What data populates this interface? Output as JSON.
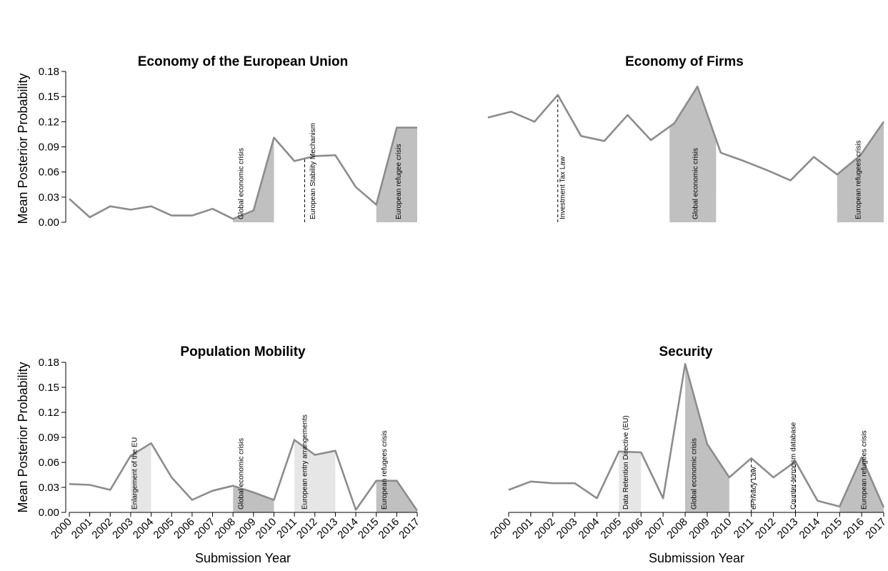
{
  "chart_data": [
    {
      "type": "line",
      "title": "Economy of the European Union",
      "ylabel": "Mean Posterior Probability",
      "xlabel": "",
      "ylim": [
        0,
        0.18
      ],
      "yticks": [
        "0.00",
        "0.03",
        "0.06",
        "0.09",
        "0.12",
        "0.15",
        "0.18"
      ],
      "x": [
        2000,
        2001,
        2002,
        2003,
        2004,
        2005,
        2006,
        2007,
        2008,
        2009,
        2010,
        2011,
        2012,
        2013,
        2014,
        2015,
        2016,
        2017
      ],
      "xticks": [],
      "values": [
        0.028,
        0.006,
        0.019,
        0.015,
        0.019,
        0.008,
        0.008,
        0.016,
        0.004,
        0.014,
        0.101,
        0.073,
        0.079,
        0.08,
        0.042,
        0.021,
        0.113,
        0.113
      ],
      "shaded": [
        {
          "from": 2008,
          "to": 2010,
          "fill": "#c0c0c0"
        },
        {
          "from": 2015,
          "to": 2017,
          "fill": "#c0c0c0"
        }
      ],
      "vlines": [
        2011.5
      ],
      "annotations": [
        {
          "text": "Global economic crisis",
          "x": 2008.5
        },
        {
          "text": "European Stability Mechanism",
          "x": 2012
        },
        {
          "text": "European refugee crisis",
          "x": 2016.2
        }
      ]
    },
    {
      "type": "line",
      "title": "Economy of Firms",
      "ylabel": "",
      "xlabel": "",
      "ylim": [
        0,
        0.18
      ],
      "yticks": [],
      "x": [
        2000,
        2001,
        2002,
        2003,
        2004,
        2005,
        2006,
        2007,
        2008,
        2009,
        2010,
        2011,
        2012,
        2013,
        2014,
        2015,
        2016,
        2017
      ],
      "xticks": [],
      "values": [
        0.125,
        0.132,
        0.12,
        0.152,
        0.103,
        0.097,
        0.128,
        0.098,
        0.118,
        0.162,
        0.083,
        0.073,
        0.062,
        0.05,
        0.078,
        0.057,
        0.08,
        0.12
      ],
      "shaded": [
        {
          "from": 2007.8,
          "to": 2009.8,
          "fill": "#c0c0c0"
        },
        {
          "from": 2015,
          "to": 2017,
          "fill": "#c0c0c0"
        }
      ],
      "vlines": [
        2003
      ],
      "annotations": [
        {
          "text": "Investment Tax Law",
          "x": 2003.3
        },
        {
          "text": "Global economic crisis",
          "x": 2009
        },
        {
          "text": "European refugees crisis",
          "x": 2016
        }
      ]
    },
    {
      "type": "line",
      "title": "Population Mobility",
      "ylabel": "Mean Posterior Probability",
      "xlabel": "Submission Year",
      "ylim": [
        0,
        0.18
      ],
      "yticks": [
        "0.00",
        "0.03",
        "0.06",
        "0.09",
        "0.12",
        "0.15",
        "0.18"
      ],
      "x": [
        2000,
        2001,
        2002,
        2003,
        2004,
        2005,
        2006,
        2007,
        2008,
        2009,
        2010,
        2011,
        2012,
        2013,
        2014,
        2015,
        2016,
        2017
      ],
      "xticks": [
        "2000",
        "2001",
        "2002",
        "2003",
        "2004",
        "2005",
        "2006",
        "2007",
        "2008",
        "2009",
        "2010",
        "2011",
        "2012",
        "2013",
        "2014",
        "2015",
        "2016",
        "2017"
      ],
      "values": [
        0.034,
        0.033,
        0.027,
        0.068,
        0.083,
        0.042,
        0.015,
        0.026,
        0.032,
        0.024,
        0.015,
        0.087,
        0.069,
        0.074,
        0.003,
        0.038,
        0.038,
        0.002
      ],
      "shaded": [
        {
          "from": 2003,
          "to": 2004,
          "fill": "#e6e6e6"
        },
        {
          "from": 2008,
          "to": 2010,
          "fill": "#c0c0c0"
        },
        {
          "from": 2011,
          "to": 2013,
          "fill": "#e6e6e6"
        },
        {
          "from": 2015,
          "to": 2017,
          "fill": "#c0c0c0"
        }
      ],
      "vlines": [],
      "annotations": [
        {
          "text": "Enlargement of the EU",
          "x": 2003.3
        },
        {
          "text": "Global economic crisis",
          "x": 2008.5
        },
        {
          "text": "European entry arrangements",
          "x": 2011.6
        },
        {
          "text": "European refugees crisis",
          "x": 2015.5
        }
      ]
    },
    {
      "type": "line",
      "title": "Security",
      "ylabel": "",
      "xlabel": "Submission Year",
      "ylim": [
        0,
        0.18
      ],
      "yticks": [],
      "x": [
        2000,
        2001,
        2002,
        2003,
        2004,
        2005,
        2006,
        2007,
        2008,
        2009,
        2010,
        2011,
        2012,
        2013,
        2014,
        2015,
        2016,
        2017
      ],
      "xticks": [
        "2000",
        "2001",
        "2002",
        "2003",
        "2004",
        "2005",
        "2006",
        "2007",
        "2008",
        "2009",
        "2010",
        "2011",
        "2012",
        "2013",
        "2014",
        "2015",
        "2016",
        "2017"
      ],
      "values": [
        0.027,
        0.037,
        0.035,
        0.035,
        0.017,
        0.073,
        0.072,
        0.017,
        0.178,
        0.082,
        0.042,
        0.065,
        0.042,
        0.061,
        0.014,
        0.007,
        0.066,
        0.006
      ],
      "shaded": [
        {
          "from": 2005,
          "to": 2006,
          "fill": "#e6e6e6"
        },
        {
          "from": 2008,
          "to": 2010,
          "fill": "#c0c0c0"
        },
        {
          "from": 2015,
          "to": 2017,
          "fill": "#c0c0c0"
        }
      ],
      "vlines": [
        2011,
        2013
      ],
      "annotations": [
        {
          "text": "Data Retention Directive (EU)",
          "x": 2005.4
        },
        {
          "text": "Global economic crisis",
          "x": 2008.5
        },
        {
          "text": "ePrivacy Law",
          "x": 2011.2
        },
        {
          "text": "Counter-terrorism database",
          "x": 2013
        },
        {
          "text": "European refugees crisis",
          "x": 2016.2
        }
      ]
    }
  ]
}
